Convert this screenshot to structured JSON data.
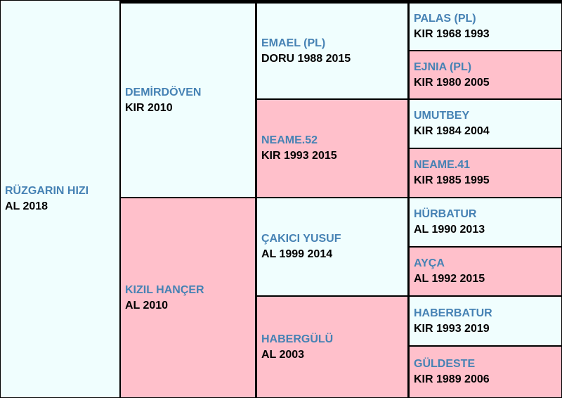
{
  "horse": {
    "name": "RÜZGARIN HIZI",
    "info": "AL 2018"
  },
  "sire": {
    "name": "DEMİRDÖVEN",
    "info": "KIR 2010"
  },
  "dam": {
    "name": "KIZIL HANÇER",
    "info": "AL 2010"
  },
  "gen2": [
    {
      "name": "EMAEL (PL)",
      "info": "DORU 1988 2015"
    },
    {
      "name": "NEAME.52",
      "info": "KIR 1993 2015"
    },
    {
      "name": "ÇAKICI YUSUF",
      "info": "AL 1999 2014"
    },
    {
      "name": "HABERGÜLÜ",
      "info": "AL 2003"
    }
  ],
  "gen3": [
    {
      "name": "PALAS (PL)",
      "info": "KIR 1968 1993"
    },
    {
      "name": "EJNIA (PL)",
      "info": "KIR 1980 2005"
    },
    {
      "name": "UMUTBEY",
      "info": "KIR 1984 2004"
    },
    {
      "name": "NEAME.41",
      "info": "KIR 1985 1995"
    },
    {
      "name": "HÜRBATUR",
      "info": "AL 1990 2013"
    },
    {
      "name": "AYÇA",
      "info": "AL 1992 2015"
    },
    {
      "name": "HABERBATUR",
      "info": "KIR 1993 2019"
    },
    {
      "name": "GÜLDESTE",
      "info": "KIR 1989 2006"
    }
  ],
  "colors": {
    "male_bg": "#f0fefe",
    "female_bg": "#ffc0cb",
    "name_text": "#4682b4",
    "border": "#000000"
  }
}
